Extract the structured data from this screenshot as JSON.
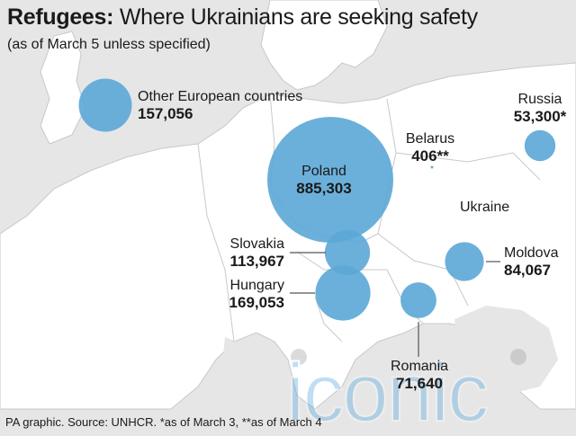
{
  "header": {
    "title_bold": "Refugees:",
    "title_rest": " Where Ukrainians are seeking safety",
    "subtitle": "(as of March 5 unless specified)"
  },
  "map": {
    "land_color": "#ffffff",
    "sea_color": "#e6e6e6",
    "border_color": "#c8c8c8",
    "bubble_color": "#5ba7d6",
    "country_label": "Ukraine"
  },
  "destinations": [
    {
      "id": "other-european",
      "name": "Other European countries",
      "value": "157,056"
    },
    {
      "id": "poland",
      "name": "Poland",
      "value": "885,303"
    },
    {
      "id": "slovakia",
      "name": "Slovakia",
      "value": "113,967"
    },
    {
      "id": "hungary",
      "name": "Hungary",
      "value": "169,053"
    },
    {
      "id": "romania",
      "name": "Romania",
      "value": "71,640"
    },
    {
      "id": "moldova",
      "name": "Moldova",
      "value": "84,067"
    },
    {
      "id": "russia",
      "name": "Russia",
      "value": "53,300*"
    },
    {
      "id": "belarus",
      "name": "Belarus",
      "value": "406**"
    }
  ],
  "footer": {
    "source": "PA graphic. Source: UNHCR. *as of March 3, **as of March 4"
  },
  "watermark": "iconic"
}
